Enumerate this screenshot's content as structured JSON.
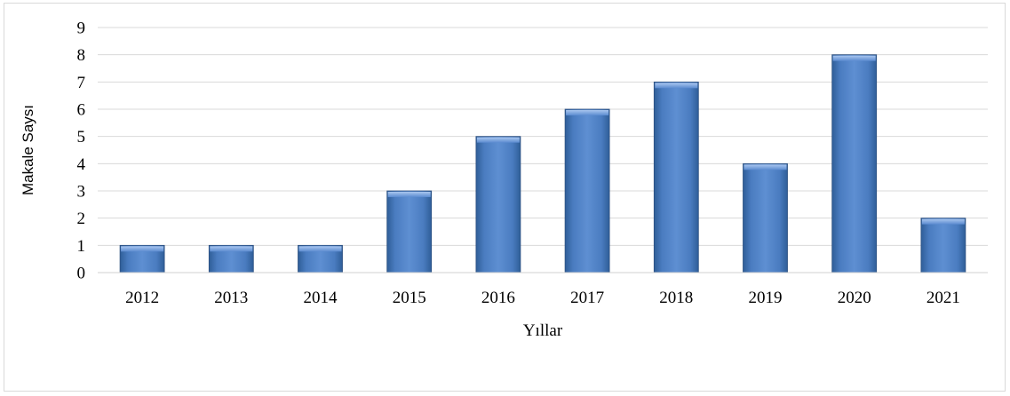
{
  "chart_data": {
    "type": "bar",
    "categories": [
      "2012",
      "2013",
      "2014",
      "2015",
      "2016",
      "2017",
      "2018",
      "2019",
      "2020",
      "2021"
    ],
    "values": [
      1,
      1,
      1,
      3,
      5,
      6,
      7,
      4,
      8,
      2
    ],
    "xlabel": "Yıllar",
    "ylabel": "Makale Saysı",
    "ylim": [
      0,
      9
    ],
    "yticks": [
      "0",
      "1",
      "2",
      "3",
      "4",
      "5",
      "6",
      "7",
      "8",
      "9"
    ],
    "grid": true,
    "bar_color": "#4f81bd"
  }
}
